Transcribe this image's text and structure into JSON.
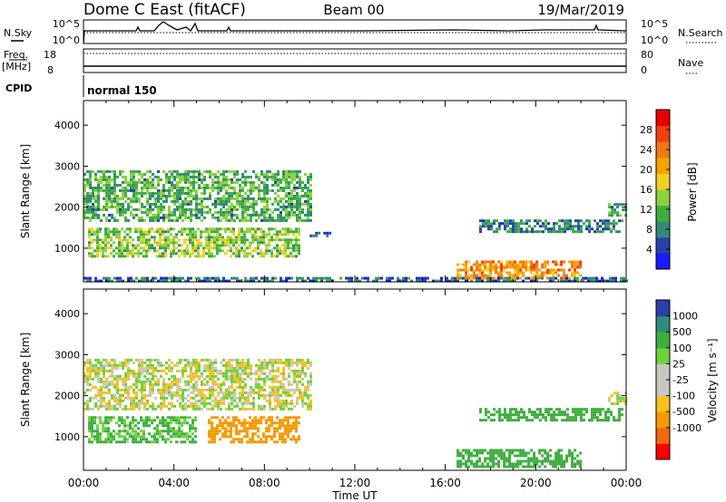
{
  "header": {
    "title": "Dome C East (fitACF)",
    "beam": "Beam 00",
    "date": "19/Mar/2019"
  },
  "status_panels": {
    "nsky_label": "N.Sky",
    "nsearch_label": "N.Search",
    "noise_ticks": [
      "10^5",
      "10^0"
    ],
    "freq_label_1": "Freq.",
    "freq_label_2": "[MHz]",
    "freq_ticks": [
      "18",
      "8"
    ],
    "nave_label": "Nave",
    "nave_ticks": [
      "80",
      "0"
    ],
    "cpid_label": "CPID",
    "cpid_value": "normal 150"
  },
  "colors": {
    "power_scale": [
      "#1a1aff",
      "#2b3fa8",
      "#2f8a78",
      "#3fae3f",
      "#8cd23c",
      "#f0d020",
      "#f5a300",
      "#f07818",
      "#f04010",
      "#e60000"
    ],
    "velocity_scale": [
      "#ff0000",
      "#f06a10",
      "#f59a00",
      "#f5c020",
      "#c8c8c0",
      "#c8c8c0",
      "#6ed23c",
      "#3fae3f",
      "#2f8a78",
      "#2b3fa8"
    ]
  },
  "chart_data": [
    {
      "type": "heatmap",
      "name": "power",
      "ylabel": "Slant Range [km]",
      "ylim": [
        180,
        4600
      ],
      "yticks": [
        "1000",
        "2000",
        "3000",
        "4000"
      ],
      "xlim_hours": [
        0,
        24
      ],
      "xticks": [
        "00:00",
        "04:00",
        "08:00",
        "12:00",
        "16:00",
        "20:00",
        "00:00"
      ],
      "colorbar_label": "Power [dB]",
      "colorbar_range": [
        0,
        32
      ],
      "colorbar_ticks": [
        "4",
        "8",
        "12",
        "16",
        "20",
        "24",
        "28"
      ],
      "regions": [
        {
          "t_start": 0.0,
          "t_end": 10.0,
          "r_start": 1700,
          "r_end": 2900,
          "level": 11
        },
        {
          "t_start": 0.2,
          "t_end": 9.5,
          "r_start": 800,
          "r_end": 1500,
          "level": 14
        },
        {
          "t_start": 10.0,
          "t_end": 11.0,
          "r_start": 1300,
          "r_end": 1400,
          "level": 6
        },
        {
          "t_start": 16.5,
          "t_end": 22.0,
          "r_start": 300,
          "r_end": 700,
          "level": 22
        },
        {
          "t_start": 17.5,
          "t_end": 23.8,
          "r_start": 1400,
          "r_end": 1700,
          "level": 8
        },
        {
          "t_start": 23.2,
          "t_end": 24.0,
          "r_start": 1800,
          "r_end": 2100,
          "level": 10
        },
        {
          "t_start": 0.0,
          "t_end": 24.0,
          "r_start": 200,
          "r_end": 300,
          "level": 6
        }
      ]
    },
    {
      "type": "heatmap",
      "name": "velocity",
      "ylabel": "Slant Range [km]",
      "ylim": [
        180,
        4600
      ],
      "yticks": [
        "1000",
        "2000",
        "3000",
        "4000"
      ],
      "xlim_hours": [
        0,
        24
      ],
      "xticks": [
        "00:00",
        "04:00",
        "08:00",
        "12:00",
        "16:00",
        "20:00",
        "00:00"
      ],
      "xlabel": "Time UT",
      "colorbar_label": "Velocity [m s⁻¹]",
      "colorbar_ticks": [
        "1000",
        "500",
        "100",
        "25",
        "-25",
        "-100",
        "-500",
        "-1000"
      ],
      "regions": [
        {
          "t_start": 0.0,
          "t_end": 10.0,
          "r_start": 1700,
          "r_end": 2900,
          "v": 0
        },
        {
          "t_start": 0.2,
          "t_end": 5.0,
          "r_start": 900,
          "r_end": 1500,
          "v": 120
        },
        {
          "t_start": 5.5,
          "t_end": 9.5,
          "r_start": 900,
          "r_end": 1500,
          "v": -300
        },
        {
          "t_start": 16.5,
          "t_end": 22.0,
          "r_start": 300,
          "r_end": 700,
          "v": 300
        },
        {
          "t_start": 17.5,
          "t_end": 23.8,
          "r_start": 1400,
          "r_end": 1700,
          "v": 200
        },
        {
          "t_start": 23.2,
          "t_end": 24.0,
          "r_start": 1800,
          "r_end": 2100,
          "v": 0
        }
      ]
    }
  ]
}
